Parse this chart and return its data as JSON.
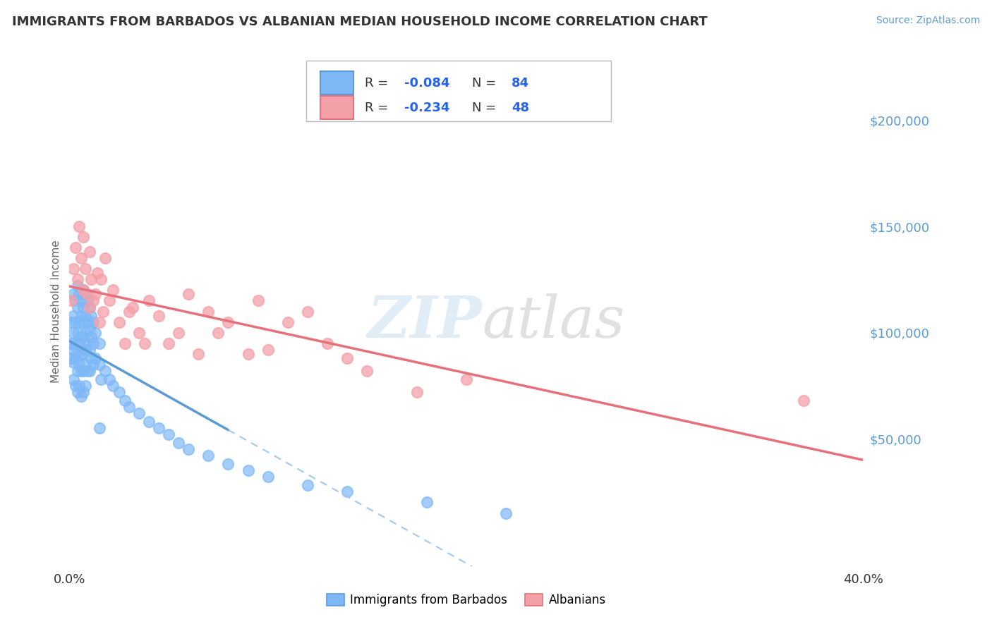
{
  "title": "IMMIGRANTS FROM BARBADOS VS ALBANIAN MEDIAN HOUSEHOLD INCOME CORRELATION CHART",
  "source": "Source: ZipAtlas.com",
  "ylabel": "Median Household Income",
  "xlim": [
    0.0,
    0.4
  ],
  "ylim": [
    -10000,
    230000
  ],
  "xticks": [
    0.0,
    0.05,
    0.1,
    0.15,
    0.2,
    0.25,
    0.3,
    0.35,
    0.4
  ],
  "yticks_right": [
    50000,
    100000,
    150000,
    200000
  ],
  "ytick_labels_right": [
    "$50,000",
    "$100,000",
    "$150,000",
    "$200,000"
  ],
  "legend_r1": "-0.084",
  "legend_n1": "84",
  "legend_r2": "-0.234",
  "legend_n2": "48",
  "series1_name": "Immigrants from Barbados",
  "series2_name": "Albanians",
  "color1": "#7EB8F7",
  "color2": "#F4A0A8",
  "regression1_solid_color": "#5B9BD5",
  "regression1_dash_color": "#A0C8F0",
  "regression2_color": "#E8707A",
  "background_color": "#FFFFFF",
  "title_color": "#333333",
  "axis_color": "#5B9BD5",
  "grid_color": "#CCCCCC",
  "series1_x": [
    0.001,
    0.001,
    0.001,
    0.002,
    0.002,
    0.002,
    0.002,
    0.002,
    0.002,
    0.003,
    0.003,
    0.003,
    0.003,
    0.003,
    0.004,
    0.004,
    0.004,
    0.004,
    0.004,
    0.004,
    0.005,
    0.005,
    0.005,
    0.005,
    0.005,
    0.006,
    0.006,
    0.006,
    0.006,
    0.006,
    0.006,
    0.007,
    0.007,
    0.007,
    0.007,
    0.007,
    0.007,
    0.007,
    0.008,
    0.008,
    0.008,
    0.008,
    0.008,
    0.008,
    0.009,
    0.009,
    0.009,
    0.009,
    0.01,
    0.01,
    0.01,
    0.01,
    0.011,
    0.011,
    0.011,
    0.012,
    0.012,
    0.012,
    0.013,
    0.013,
    0.015,
    0.015,
    0.015,
    0.016,
    0.018,
    0.02,
    0.022,
    0.025,
    0.028,
    0.03,
    0.035,
    0.04,
    0.045,
    0.05,
    0.055,
    0.06,
    0.07,
    0.08,
    0.09,
    0.1,
    0.12,
    0.14,
    0.18,
    0.22
  ],
  "series1_y": [
    95000,
    105000,
    88000,
    118000,
    108000,
    92000,
    100000,
    78000,
    86000,
    115000,
    105000,
    95000,
    88000,
    75000,
    122000,
    112000,
    100000,
    92000,
    82000,
    72000,
    118000,
    105000,
    95000,
    85000,
    75000,
    115000,
    108000,
    98000,
    90000,
    82000,
    70000,
    120000,
    112000,
    105000,
    98000,
    90000,
    82000,
    72000,
    118000,
    108000,
    100000,
    92000,
    85000,
    75000,
    115000,
    105000,
    95000,
    82000,
    112000,
    102000,
    92000,
    82000,
    108000,
    98000,
    88000,
    105000,
    95000,
    85000,
    100000,
    88000,
    95000,
    85000,
    55000,
    78000,
    82000,
    78000,
    75000,
    72000,
    68000,
    65000,
    62000,
    58000,
    55000,
    52000,
    48000,
    45000,
    42000,
    38000,
    35000,
    32000,
    28000,
    25000,
    20000,
    15000
  ],
  "series2_x": [
    0.001,
    0.002,
    0.003,
    0.004,
    0.005,
    0.006,
    0.007,
    0.007,
    0.008,
    0.009,
    0.01,
    0.01,
    0.011,
    0.012,
    0.013,
    0.014,
    0.015,
    0.016,
    0.017,
    0.018,
    0.02,
    0.022,
    0.025,
    0.028,
    0.03,
    0.032,
    0.035,
    0.038,
    0.04,
    0.045,
    0.05,
    0.055,
    0.06,
    0.065,
    0.07,
    0.075,
    0.08,
    0.09,
    0.095,
    0.1,
    0.11,
    0.12,
    0.13,
    0.14,
    0.15,
    0.175,
    0.2,
    0.37
  ],
  "series2_y": [
    115000,
    130000,
    140000,
    125000,
    150000,
    135000,
    145000,
    120000,
    130000,
    118000,
    138000,
    112000,
    125000,
    115000,
    118000,
    128000,
    105000,
    125000,
    110000,
    135000,
    115000,
    120000,
    105000,
    95000,
    110000,
    112000,
    100000,
    95000,
    115000,
    108000,
    95000,
    100000,
    118000,
    90000,
    110000,
    100000,
    105000,
    90000,
    115000,
    92000,
    105000,
    110000,
    95000,
    88000,
    82000,
    72000,
    78000,
    68000
  ]
}
